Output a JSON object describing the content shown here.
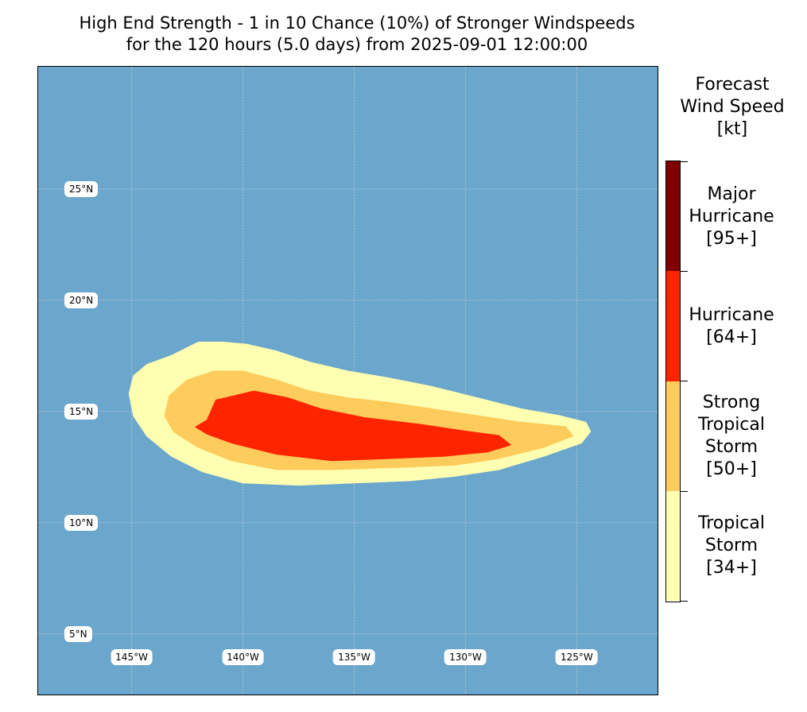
{
  "title": {
    "line1": "High End Strength - 1 in 10 Chance (10%) of Stronger Windspeeds",
    "line2": "for the 120 hours (5.0 days) from 2025-09-01 12:00:00"
  },
  "map": {
    "extent_lon": [
      -149.2,
      -121.3
    ],
    "extent_lat": [
      2.2,
      30.5
    ],
    "ocean_color": "#6ba6cc",
    "latitude_labels": [
      "25°N",
      "20°N",
      "15°N",
      "10°N",
      "5°N"
    ],
    "longitude_labels": [
      "145°W",
      "140°W",
      "135°W",
      "130°W",
      "125°W"
    ],
    "latitudes": [
      25,
      20,
      15,
      10,
      5
    ],
    "longitudes": [
      -145,
      -140,
      -135,
      -130,
      -125
    ]
  },
  "wind_swath": [
    {
      "category": "tropical-storm",
      "color": "#ffffb2",
      "outline": [
        [
          -145.1,
          15.8
        ],
        [
          -144.9,
          16.6
        ],
        [
          -144.3,
          17.1
        ],
        [
          -143.2,
          17.5
        ],
        [
          -142,
          18.1
        ],
        [
          -140.9,
          18.1
        ],
        [
          -139.8,
          18
        ],
        [
          -138.5,
          17.7
        ],
        [
          -137,
          17.2
        ],
        [
          -135.3,
          16.8
        ],
        [
          -133.5,
          16.5
        ],
        [
          -131.5,
          16.1
        ],
        [
          -129.5,
          15.6
        ],
        [
          -127.5,
          15.1
        ],
        [
          -125.8,
          14.8
        ],
        [
          -124.6,
          14.5
        ],
        [
          -124.4,
          14.1
        ],
        [
          -124.8,
          13.6
        ],
        [
          -126.5,
          13
        ],
        [
          -128.5,
          12.4
        ],
        [
          -130.5,
          12.1
        ],
        [
          -132.5,
          11.9
        ],
        [
          -135,
          11.8
        ],
        [
          -137.5,
          11.7
        ],
        [
          -140,
          11.8
        ],
        [
          -141.8,
          12.3
        ],
        [
          -143.2,
          13
        ],
        [
          -144.3,
          13.9
        ],
        [
          -144.9,
          14.8
        ]
      ]
    },
    {
      "category": "strong-tropical-storm",
      "color": "#fecc5c",
      "outline": [
        [
          -143.5,
          14.8
        ],
        [
          -143.3,
          15.7
        ],
        [
          -142.5,
          16.4
        ],
        [
          -141.3,
          16.8
        ],
        [
          -140,
          16.8
        ],
        [
          -138.5,
          16.4
        ],
        [
          -137,
          15.9
        ],
        [
          -135.3,
          15.6
        ],
        [
          -133.5,
          15.4
        ],
        [
          -131.5,
          15.1
        ],
        [
          -129.5,
          14.8
        ],
        [
          -127.5,
          14.5
        ],
        [
          -125.5,
          14.3
        ],
        [
          -125.2,
          13.9
        ],
        [
          -126.5,
          13.4
        ],
        [
          -128.5,
          12.9
        ],
        [
          -130.5,
          12.6
        ],
        [
          -133,
          12.5
        ],
        [
          -136,
          12.4
        ],
        [
          -138.5,
          12.4
        ],
        [
          -140.5,
          12.8
        ],
        [
          -142,
          13.4
        ],
        [
          -143.1,
          14.1
        ]
      ]
    },
    {
      "category": "hurricane",
      "color": "#ff2400",
      "outline": [
        [
          -142.1,
          14.3
        ],
        [
          -141.6,
          14.6
        ],
        [
          -141.2,
          15.5
        ],
        [
          -139.5,
          15.9
        ],
        [
          -138,
          15.6
        ],
        [
          -136.5,
          15.1
        ],
        [
          -134.5,
          14.7
        ],
        [
          -132,
          14.4
        ],
        [
          -130,
          14.1
        ],
        [
          -128.5,
          13.9
        ],
        [
          -128,
          13.5
        ],
        [
          -129,
          13.2
        ],
        [
          -131,
          13
        ],
        [
          -133.5,
          12.9
        ],
        [
          -136,
          12.8
        ],
        [
          -138.5,
          13.1
        ],
        [
          -140.5,
          13.6
        ],
        [
          -141.6,
          14
        ]
      ]
    }
  ],
  "legend": {
    "title_line1": "Forecast",
    "title_line2": "Wind Speed",
    "title_line3": "[kt]",
    "categories": [
      {
        "name": "Major Hurricane",
        "color": "#800000",
        "lines": [
          "Major",
          "Hurricane",
          "[95+]"
        ]
      },
      {
        "name": "Hurricane",
        "color": "#ff2400",
        "lines": [
          "Hurricane",
          "[64+]"
        ]
      },
      {
        "name": "Strong Tropical Storm",
        "color": "#fecc5c",
        "lines": [
          "Strong",
          "Tropical",
          "Storm",
          "[50+]"
        ]
      },
      {
        "name": "Tropical Storm",
        "color": "#ffffb2",
        "lines": [
          "Tropical",
          "Storm",
          "[34+]"
        ]
      }
    ]
  }
}
